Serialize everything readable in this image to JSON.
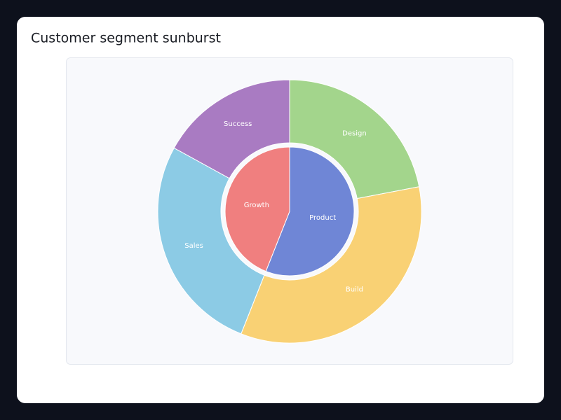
{
  "chart_data": {
    "type": "sunburst",
    "title": "Customer segment sunburst",
    "nodes": [
      {
        "name": "Product",
        "color": "#6f86d6",
        "children": [
          {
            "name": "Design",
            "value": 22,
            "color": "#a3d58c"
          },
          {
            "name": "Build",
            "value": 34,
            "color": "#f9d174"
          }
        ]
      },
      {
        "name": "Growth",
        "color": "#f07f7f",
        "children": [
          {
            "name": "Sales",
            "value": 27,
            "color": "#8ccbe5"
          },
          {
            "name": "Success",
            "value": 17,
            "color": "#a97bc2"
          }
        ]
      }
    ]
  }
}
